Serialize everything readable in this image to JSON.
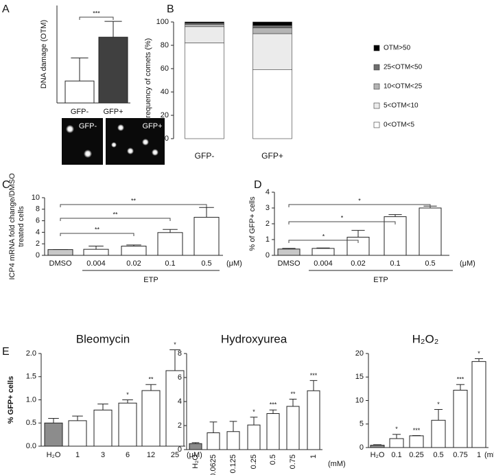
{
  "chart_data": [
    {
      "type": "bar",
      "panel": "A",
      "y_label": "DNA damage (OTM)",
      "categories": [
        "GFP-",
        "GFP+"
      ],
      "values": [
        1.8,
        5.4
      ],
      "errors": [
        1.9,
        1.3
      ],
      "colors": [
        "#ffffff",
        "#404040"
      ],
      "ylim": [
        0,
        8
      ],
      "brackets": [
        "***"
      ],
      "image_labels": [
        "GFP-",
        "GFP+"
      ]
    },
    {
      "type": "stacked_bar",
      "panel": "B",
      "y_label": "Frequency of comets (%)",
      "categories": [
        "GFP-",
        "GFP+"
      ],
      "ylim": [
        0,
        100
      ],
      "yticks": [
        0,
        20,
        40,
        60,
        80,
        100
      ],
      "legend": "right",
      "series": [
        {
          "name": "0<OTM<5",
          "color": "#ffffff",
          "values": [
            82,
            59
          ]
        },
        {
          "name": "5<OTM<10",
          "color": "#ebebeb",
          "values": [
            14,
            31
          ]
        },
        {
          "name": "10<OTM<25",
          "color": "#b4b4b4",
          "values": [
            2,
            5
          ]
        },
        {
          "name": "25<OTM<50",
          "color": "#6e6e6e",
          "values": [
            1,
            2
          ]
        },
        {
          "name": "OTM>50",
          "color": "#000000",
          "values": [
            1,
            3
          ]
        }
      ]
    },
    {
      "type": "bar",
      "panel": "C",
      "y_label": [
        "ICP4 mRNA fold change/DMSO",
        "treated cells"
      ],
      "categories": [
        "DMSO",
        "0.004",
        "0.02",
        "0.1",
        "0.5"
      ],
      "unit": "(μM)",
      "group_label": "ETP",
      "values": [
        1,
        1.05,
        1.6,
        3.95,
        6.6
      ],
      "errors": [
        0,
        0.55,
        0.2,
        0.55,
        1.7
      ],
      "colors": [
        "#c8c8c8",
        "#ffffff",
        "#ffffff",
        "#ffffff",
        "#ffffff"
      ],
      "ylim": [
        0,
        10
      ],
      "yticks": [
        0,
        2,
        4,
        6,
        8,
        10
      ],
      "brackets": [
        "**",
        "**",
        "**"
      ]
    },
    {
      "type": "bar",
      "panel": "D",
      "y_label": "% of GFP+ cells",
      "categories": [
        "DMSO",
        "0.004",
        "0.02",
        "0.1",
        "0.5"
      ],
      "unit": "(μM)",
      "group_label": "ETP",
      "values": [
        0.4,
        0.44,
        1.15,
        2.45,
        3.0
      ],
      "errors": [
        0.04,
        0.03,
        0.43,
        0.13,
        0.12
      ],
      "colors": [
        "#c8c8c8",
        "#ffffff",
        "#ffffff",
        "#ffffff",
        "#ffffff"
      ],
      "ylim": [
        0,
        4
      ],
      "yticks": [
        0,
        1,
        2,
        3,
        4
      ],
      "brackets": [
        "*",
        "*",
        "*"
      ]
    },
    {
      "type": "bar",
      "panel": "E",
      "title": "Bleomycin",
      "y_label": "% GFP+ cells",
      "categories": [
        "H₂O",
        "1",
        "3",
        "6",
        "12",
        "25"
      ],
      "unit": "(μM)",
      "values": [
        0.5,
        0.55,
        0.78,
        0.93,
        1.2,
        1.63
      ],
      "errors": [
        0.1,
        0.1,
        0.13,
        0.07,
        0.13,
        0.45
      ],
      "significance": [
        null,
        null,
        null,
        "*",
        "**",
        "*"
      ],
      "colors": [
        "#8c8c8c",
        "#ffffff",
        "#ffffff",
        "#ffffff",
        "#ffffff",
        "#ffffff"
      ],
      "ylim": [
        0,
        2
      ],
      "yticks": [
        {
          "value": 0,
          "label": "0.0"
        },
        0.5,
        {
          "value": 1,
          "label": "1.0"
        },
        1.5,
        {
          "value": 2,
          "label": "2.0"
        }
      ]
    },
    {
      "type": "bar",
      "title": "Hydroxyurea",
      "categories": [
        "H₂O",
        "0.0625",
        "0.125",
        "0.25",
        "0.5",
        "0.75",
        "1"
      ],
      "unit": "(mM)",
      "values": [
        0.5,
        1.4,
        1.5,
        2.05,
        3.0,
        3.6,
        4.9
      ],
      "errors": [
        0.08,
        0.9,
        0.85,
        0.65,
        0.3,
        0.6,
        0.85
      ],
      "significance": [
        null,
        null,
        null,
        "*",
        "***",
        "**",
        "***"
      ],
      "colors": [
        "#8c8c8c",
        "#ffffff",
        "#ffffff",
        "#ffffff",
        "#ffffff",
        "#ffffff",
        "#ffffff"
      ],
      "ylim": [
        0,
        8
      ],
      "yticks": [
        0,
        2,
        4,
        6,
        8
      ]
    },
    {
      "type": "bar",
      "title": "H₂O₂",
      "categories": [
        "H₂O",
        "0.1",
        "0.25",
        "0.5",
        "0.75",
        "1"
      ],
      "unit": "(mM)",
      "values": [
        0.5,
        1.9,
        2.5,
        5.8,
        12.2,
        18.3
      ],
      "errors": [
        0.1,
        0.9,
        0.05,
        2.3,
        1.2,
        0.6
      ],
      "significance": [
        null,
        "*",
        "***",
        "*",
        "***",
        "*"
      ],
      "colors": [
        "#8c8c8c",
        "#ffffff",
        "#ffffff",
        "#ffffff",
        "#ffffff",
        "#ffffff"
      ],
      "ylim": [
        0,
        20
      ],
      "yticks": [
        0,
        5,
        10,
        15,
        20
      ]
    }
  ]
}
